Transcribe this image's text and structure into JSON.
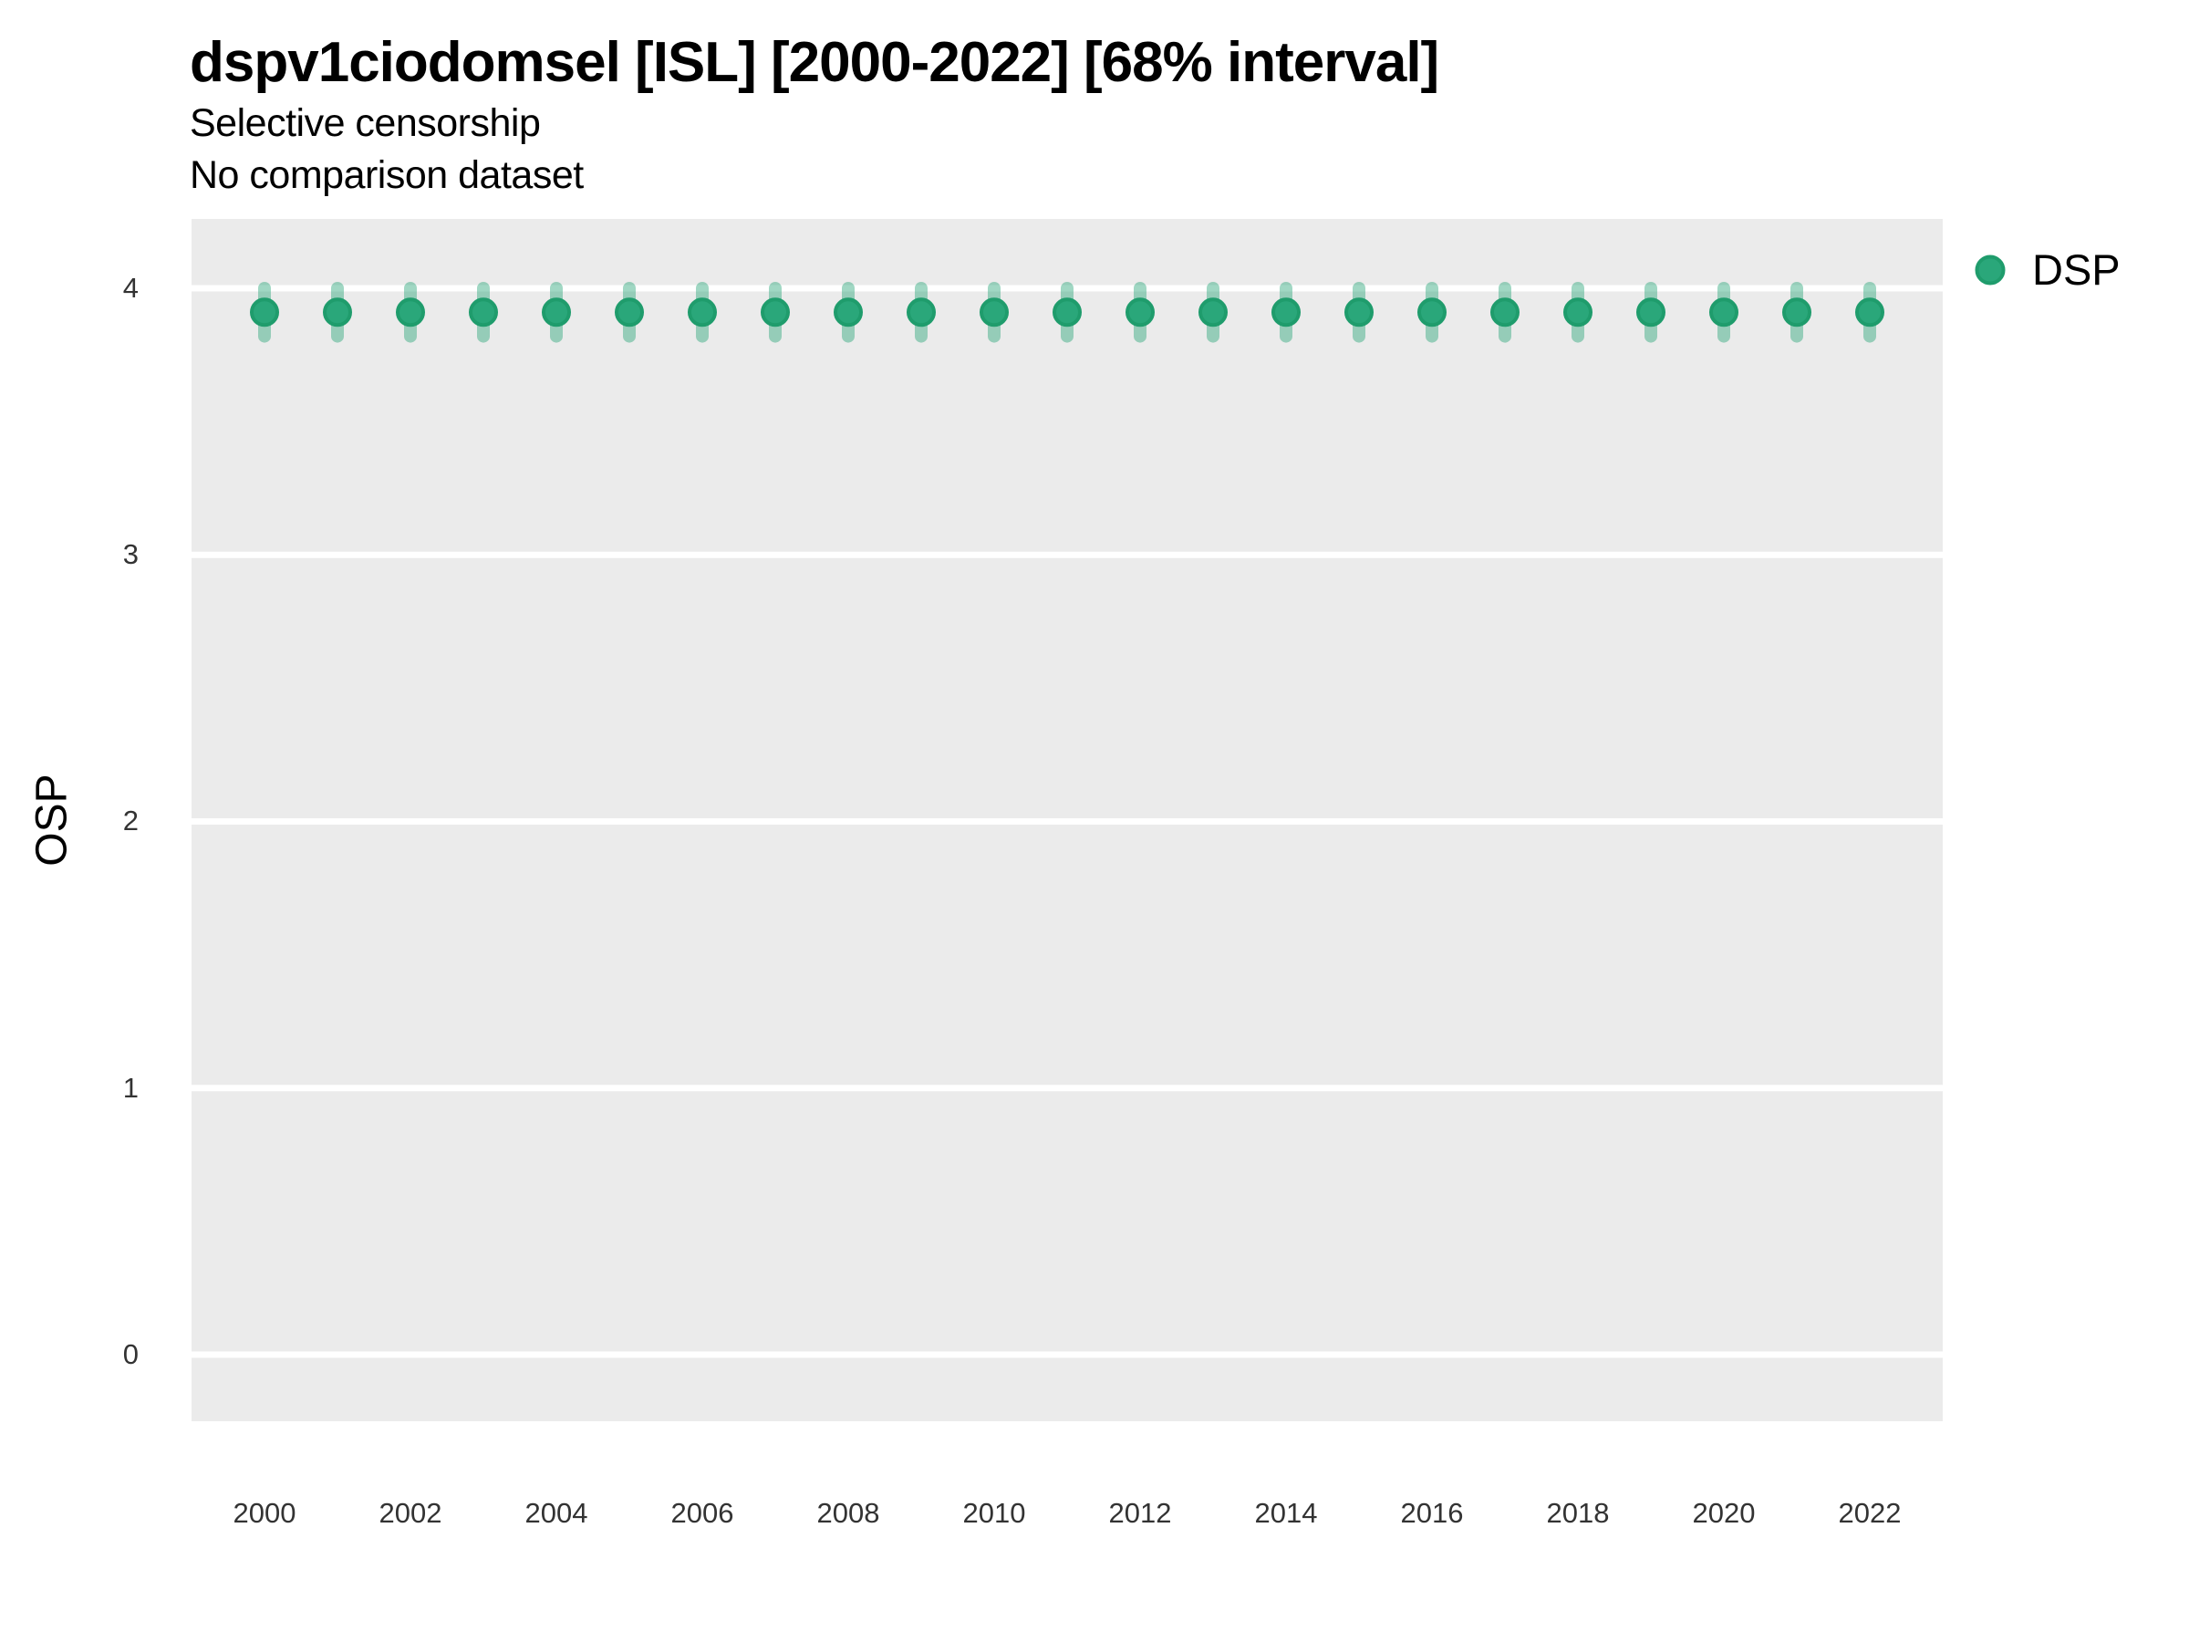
{
  "header": {
    "title": "dspv1ciodomsel [ISL] [2000-2022] [68% interval]",
    "subtitle1": "Selective censorship",
    "subtitle2": "No comparison dataset"
  },
  "legend": {
    "label": "DSP"
  },
  "chart_data": {
    "type": "scatter",
    "title": "dspv1ciodomsel [ISL] [2000-2022] [68% interval]",
    "subtitle": [
      "Selective censorship",
      "No comparison dataset"
    ],
    "xlabel": "",
    "ylabel": "OSP",
    "interval_note": "68% interval",
    "x": [
      2000,
      2001,
      2002,
      2003,
      2004,
      2005,
      2006,
      2007,
      2008,
      2009,
      2010,
      2011,
      2012,
      2013,
      2014,
      2015,
      2016,
      2017,
      2018,
      2019,
      2020,
      2021,
      2022
    ],
    "series": [
      {
        "name": "DSP",
        "values": [
          3.91,
          3.91,
          3.91,
          3.91,
          3.91,
          3.91,
          3.91,
          3.91,
          3.91,
          3.91,
          3.91,
          3.91,
          3.91,
          3.91,
          3.91,
          3.91,
          3.91,
          3.91,
          3.91,
          3.91,
          3.91,
          3.91,
          3.91
        ],
        "lower": [
          3.82,
          3.82,
          3.82,
          3.82,
          3.82,
          3.82,
          3.82,
          3.82,
          3.82,
          3.82,
          3.82,
          3.82,
          3.82,
          3.82,
          3.82,
          3.82,
          3.82,
          3.82,
          3.82,
          3.82,
          3.82,
          3.82,
          3.82
        ],
        "upper": [
          4.0,
          4.0,
          4.0,
          4.0,
          4.0,
          4.0,
          4.0,
          4.0,
          4.0,
          4.0,
          4.0,
          4.0,
          4.0,
          4.0,
          4.0,
          4.0,
          4.0,
          4.0,
          4.0,
          4.0,
          4.0,
          4.0,
          4.0
        ]
      }
    ],
    "xticks": [
      2000,
      2002,
      2004,
      2006,
      2008,
      2010,
      2012,
      2014,
      2016,
      2018,
      2020,
      2022
    ],
    "yticks": [
      0,
      1,
      2,
      3,
      4
    ],
    "xlim": [
      1999,
      2023
    ],
    "ylim": [
      -0.25,
      4.26
    ],
    "grid": "horizontal-major-only",
    "legend_position": "right-top",
    "colors": {
      "point_fill": "#2AA77A",
      "point_stroke": "#1F9C6C",
      "errorbar": "rgba(44, 167, 122, 0.45)",
      "panel_bg": "#EBEBEB",
      "gridline": "#FFFFFF",
      "axis_text": "#333333"
    }
  }
}
